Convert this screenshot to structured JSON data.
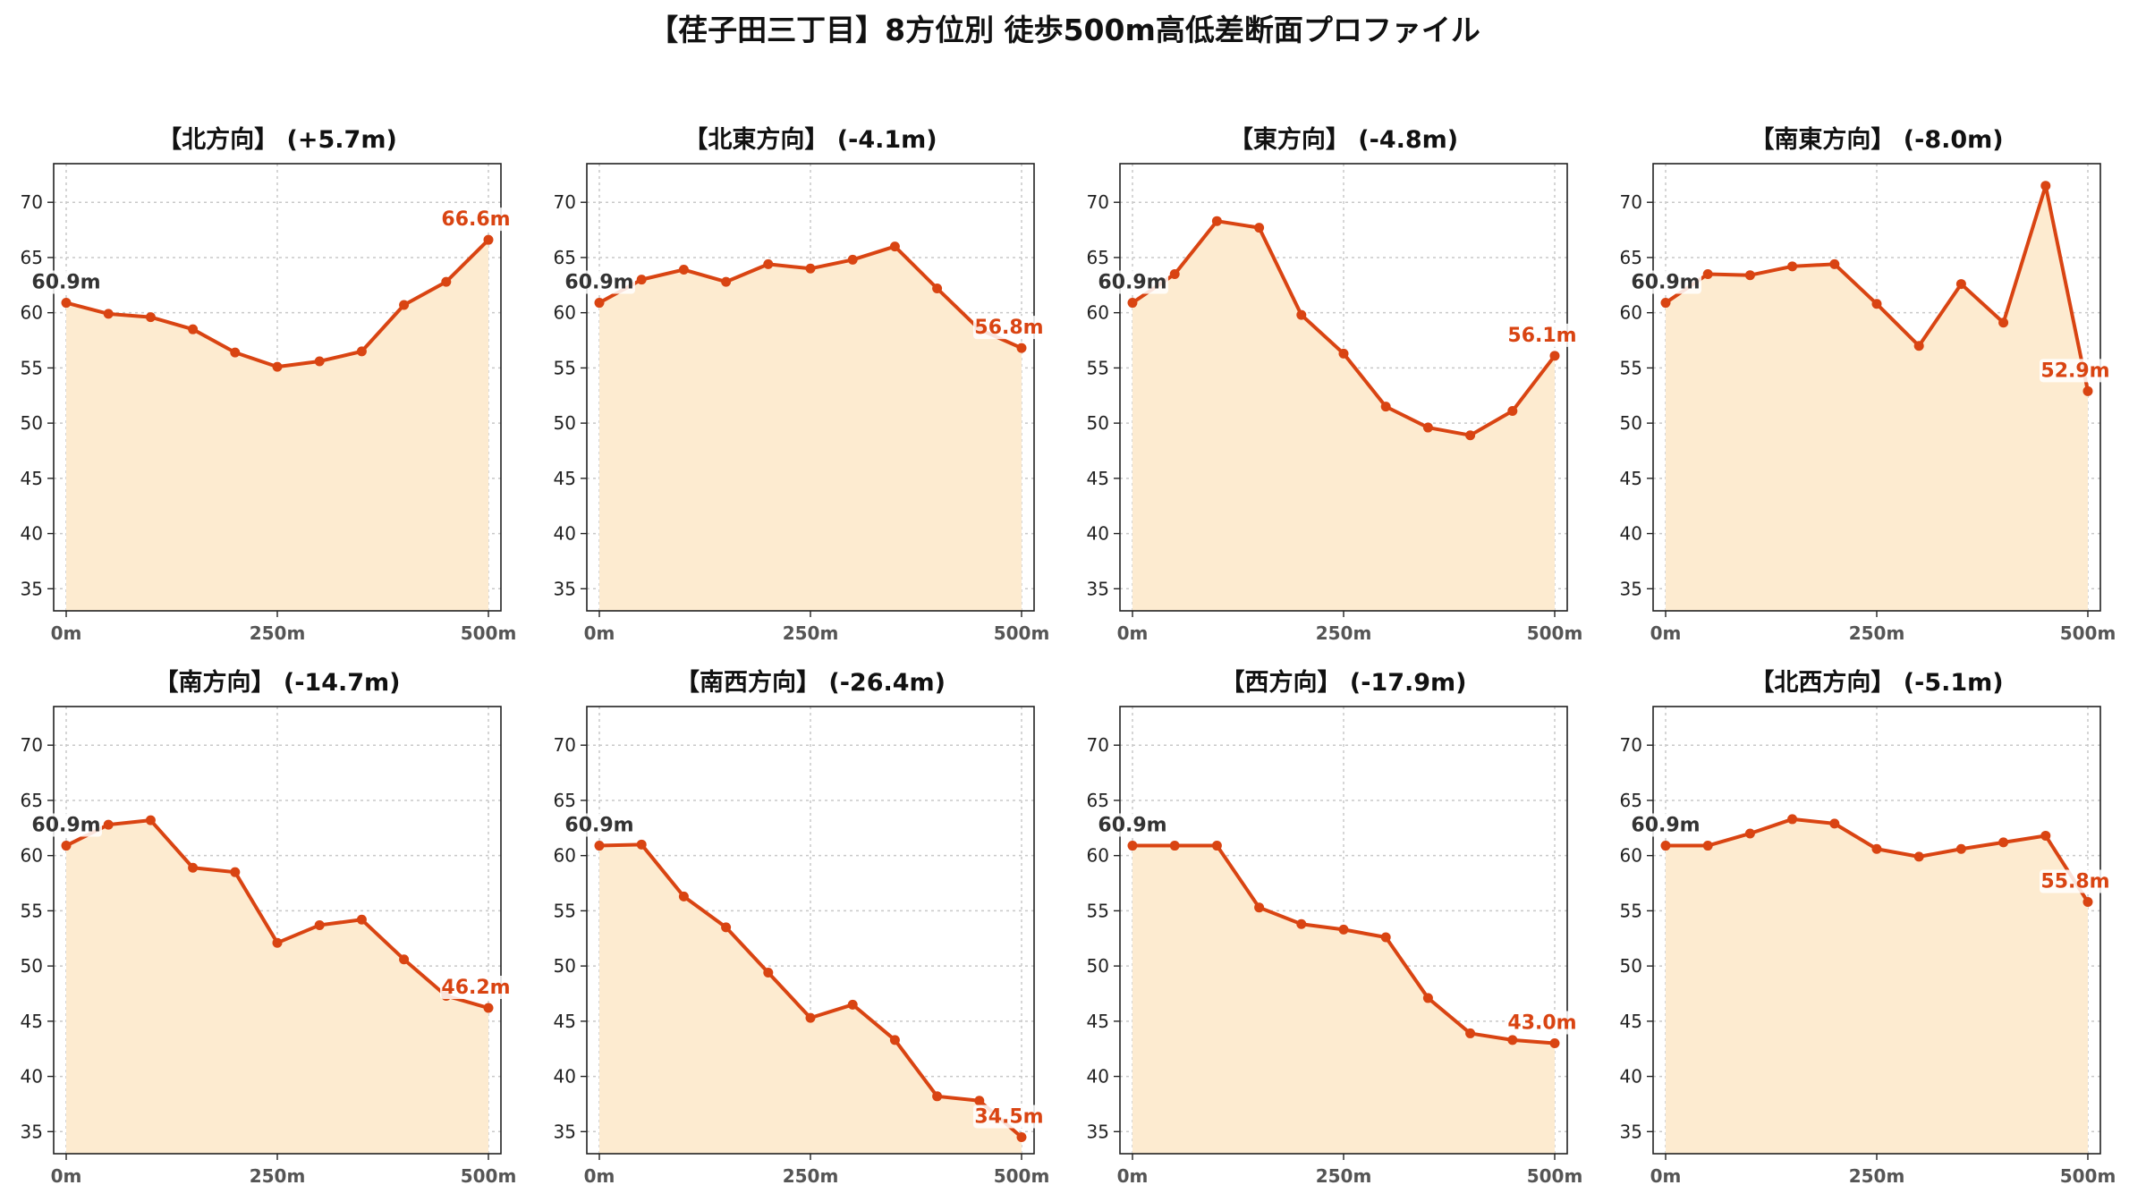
{
  "title": "【荏子田三丁目】8方位別 徒歩500m高低差断面プロファイル",
  "colors": {
    "line": "#d94412",
    "fill": "#fdebd0",
    "start_label": "#333333",
    "end_label": "#d94412"
  },
  "chart_data": [
    {
      "type": "area",
      "title": "【北方向】 (+5.7m)",
      "x": [
        0,
        50,
        100,
        150,
        200,
        250,
        300,
        350,
        400,
        450,
        500
      ],
      "values": [
        60.9,
        59.9,
        59.6,
        58.5,
        56.4,
        55.1,
        55.6,
        56.5,
        60.7,
        62.8,
        66.6
      ],
      "start_label": "60.9m",
      "end_label": "66.6m",
      "xticks": [
        "0m",
        "250m",
        "500m"
      ],
      "ylim": [
        33,
        73.5
      ],
      "yticks": [
        35,
        40,
        45,
        50,
        55,
        60,
        65,
        70
      ],
      "grid": true
    },
    {
      "type": "area",
      "title": "【北東方向】 (-4.1m)",
      "x": [
        0,
        50,
        100,
        150,
        200,
        250,
        300,
        350,
        400,
        450,
        500
      ],
      "values": [
        60.9,
        63.0,
        63.9,
        62.8,
        64.4,
        64.0,
        64.8,
        66.0,
        62.2,
        58.5,
        56.8
      ],
      "start_label": "60.9m",
      "end_label": "56.8m",
      "xticks": [
        "0m",
        "250m",
        "500m"
      ],
      "ylim": [
        33,
        73.5
      ],
      "yticks": [
        35,
        40,
        45,
        50,
        55,
        60,
        65,
        70
      ],
      "grid": true
    },
    {
      "type": "area",
      "title": "【東方向】 (-4.8m)",
      "x": [
        0,
        50,
        100,
        150,
        200,
        250,
        300,
        350,
        400,
        450,
        500
      ],
      "values": [
        60.9,
        63.5,
        68.3,
        67.7,
        59.8,
        56.3,
        51.5,
        49.6,
        48.9,
        51.1,
        56.1
      ],
      "start_label": "60.9m",
      "end_label": "56.1m",
      "xticks": [
        "0m",
        "250m",
        "500m"
      ],
      "ylim": [
        33,
        73.5
      ],
      "yticks": [
        35,
        40,
        45,
        50,
        55,
        60,
        65,
        70
      ],
      "grid": true
    },
    {
      "type": "area",
      "title": "【南東方向】 (-8.0m)",
      "x": [
        0,
        50,
        100,
        150,
        200,
        250,
        300,
        350,
        400,
        450,
        500
      ],
      "values": [
        60.9,
        63.5,
        63.4,
        64.2,
        64.4,
        60.8,
        57.0,
        62.6,
        59.1,
        71.5,
        52.9
      ],
      "start_label": "60.9m",
      "end_label": "52.9m",
      "xticks": [
        "0m",
        "250m",
        "500m"
      ],
      "ylim": [
        33,
        73.5
      ],
      "yticks": [
        35,
        40,
        45,
        50,
        55,
        60,
        65,
        70
      ],
      "grid": true
    },
    {
      "type": "area",
      "title": "【南方向】 (-14.7m)",
      "x": [
        0,
        50,
        100,
        150,
        200,
        250,
        300,
        350,
        400,
        450,
        500
      ],
      "values": [
        60.9,
        62.8,
        63.2,
        58.9,
        58.5,
        52.1,
        53.7,
        54.2,
        50.6,
        47.3,
        46.2
      ],
      "start_label": "60.9m",
      "end_label": "46.2m",
      "xticks": [
        "0m",
        "250m",
        "500m"
      ],
      "ylim": [
        33,
        73.5
      ],
      "yticks": [
        35,
        40,
        45,
        50,
        55,
        60,
        65,
        70
      ],
      "grid": true
    },
    {
      "type": "area",
      "title": "【南西方向】 (-26.4m)",
      "x": [
        0,
        50,
        100,
        150,
        200,
        250,
        300,
        350,
        400,
        450,
        500
      ],
      "values": [
        60.9,
        61.0,
        56.3,
        53.5,
        49.4,
        45.3,
        46.5,
        43.3,
        38.2,
        37.8,
        34.5
      ],
      "start_label": "60.9m",
      "end_label": "34.5m",
      "xticks": [
        "0m",
        "250m",
        "500m"
      ],
      "ylim": [
        33,
        73.5
      ],
      "yticks": [
        35,
        40,
        45,
        50,
        55,
        60,
        65,
        70
      ],
      "grid": true
    },
    {
      "type": "area",
      "title": "【西方向】 (-17.9m)",
      "x": [
        0,
        50,
        100,
        150,
        200,
        250,
        300,
        350,
        400,
        450,
        500
      ],
      "values": [
        60.9,
        60.9,
        60.9,
        55.3,
        53.8,
        53.3,
        52.6,
        47.1,
        43.9,
        43.3,
        43.0
      ],
      "start_label": "60.9m",
      "end_label": "43.0m",
      "xticks": [
        "0m",
        "250m",
        "500m"
      ],
      "ylim": [
        33,
        73.5
      ],
      "yticks": [
        35,
        40,
        45,
        50,
        55,
        60,
        65,
        70
      ],
      "grid": true
    },
    {
      "type": "area",
      "title": "【北西方向】 (-5.1m)",
      "x": [
        0,
        50,
        100,
        150,
        200,
        250,
        300,
        350,
        400,
        450,
        500
      ],
      "values": [
        60.9,
        60.9,
        62.0,
        63.3,
        62.9,
        60.6,
        59.9,
        60.6,
        61.2,
        61.8,
        55.8
      ],
      "start_label": "60.9m",
      "end_label": "55.8m",
      "xticks": [
        "0m",
        "250m",
        "500m"
      ],
      "ylim": [
        33,
        73.5
      ],
      "yticks": [
        35,
        40,
        45,
        50,
        55,
        60,
        65,
        70
      ],
      "grid": true
    }
  ]
}
